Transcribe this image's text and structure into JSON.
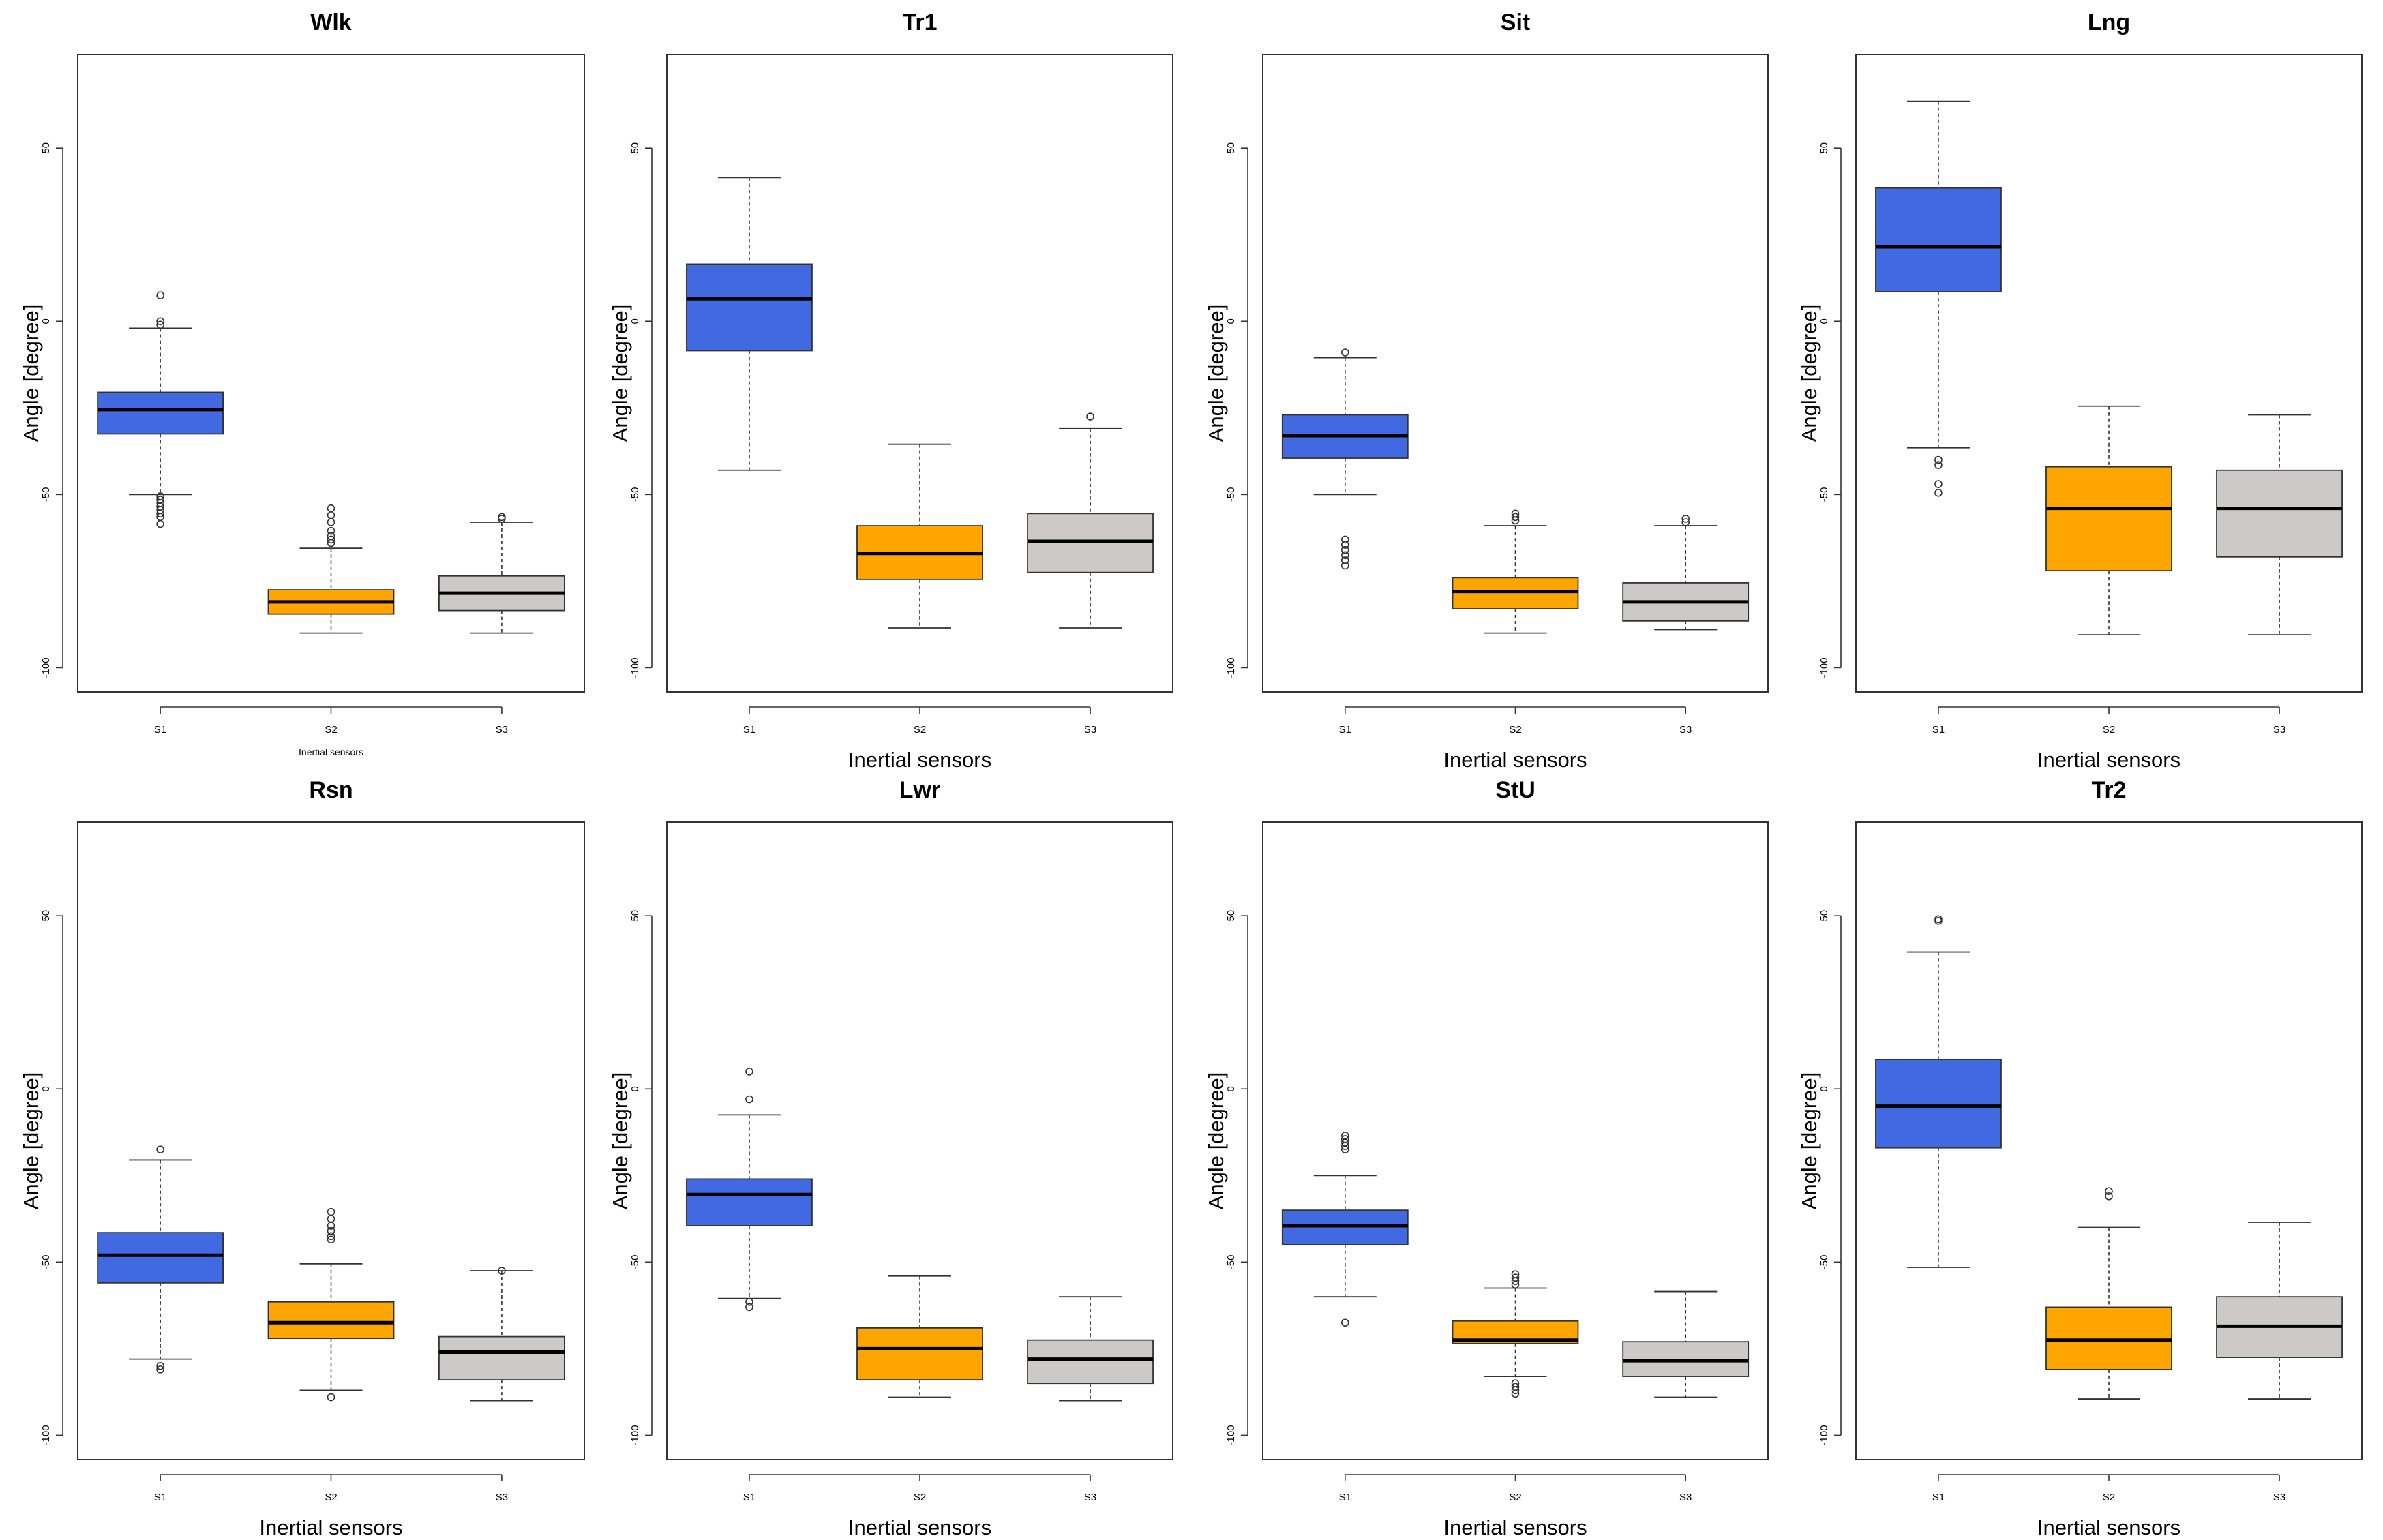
{
  "chart_data": [
    {
      "type": "box",
      "title": "Wlk",
      "ylabel": "Angle [degree]",
      "xlabel": "Inertial sensors",
      "xlabel_size": "small",
      "categories": [
        "S1",
        "S2",
        "S3"
      ],
      "ylim": [
        -107,
        77
      ],
      "yticks": [
        -100,
        -50,
        0,
        50
      ],
      "boxes": [
        {
          "name": "S1",
          "lower": -50,
          "q1": -32.5,
          "median": -25.5,
          "q3": -20.5,
          "upper": -2,
          "outliers": [
            7.5,
            0,
            -1,
            -50.5,
            -51.5,
            -52.5,
            -53.5,
            -54.5,
            -55.5,
            -56.5,
            -58.5
          ]
        },
        {
          "name": "S2",
          "lower": -90,
          "q1": -84.5,
          "median": -81,
          "q3": -77.5,
          "upper": -65.5,
          "outliers": [
            -54,
            -56,
            -58,
            -60.5,
            -62,
            -63,
            -64
          ]
        },
        {
          "name": "S3",
          "lower": -90,
          "q1": -83.5,
          "median": -78.5,
          "q3": -73.5,
          "upper": -58,
          "outliers": [
            -56.5,
            -57
          ]
        }
      ]
    },
    {
      "type": "box",
      "title": "Tr1",
      "ylabel": "Angle [degree]",
      "xlabel": "Inertial sensors",
      "categories": [
        "S1",
        "S2",
        "S3"
      ],
      "ylim": [
        -107,
        77
      ],
      "yticks": [
        -100,
        -50,
        0,
        50
      ],
      "boxes": [
        {
          "name": "S1",
          "lower": -43,
          "q1": -8.5,
          "median": 6.5,
          "q3": 16.5,
          "upper": 41.5,
          "outliers": []
        },
        {
          "name": "S2",
          "lower": -88.5,
          "q1": -74.5,
          "median": -67,
          "q3": -59,
          "upper": -35.5,
          "outliers": []
        },
        {
          "name": "S3",
          "lower": -88.5,
          "q1": -72.5,
          "median": -63.5,
          "q3": -55.5,
          "upper": -31,
          "outliers": [
            -27.5
          ]
        }
      ]
    },
    {
      "type": "box",
      "title": "Sit",
      "ylabel": "Angle [degree]",
      "xlabel": "Inertial sensors",
      "categories": [
        "S1",
        "S2",
        "S3"
      ],
      "ylim": [
        -107,
        77
      ],
      "yticks": [
        -100,
        -50,
        0,
        50
      ],
      "boxes": [
        {
          "name": "S1",
          "lower": -50,
          "q1": -39.5,
          "median": -33,
          "q3": -27,
          "upper": -10.5,
          "outliers": [
            -9,
            -63,
            -64.5,
            -66,
            -67.5,
            -69,
            -70.5
          ]
        },
        {
          "name": "S2",
          "lower": -90,
          "q1": -83,
          "median": -78,
          "q3": -74,
          "upper": -59,
          "outliers": [
            -55.5,
            -56.5,
            -57.5
          ]
        },
        {
          "name": "S3",
          "lower": -89,
          "q1": -86.5,
          "median": -81,
          "q3": -75.5,
          "upper": -59,
          "outliers": [
            -57,
            -58
          ]
        }
      ]
    },
    {
      "type": "box",
      "title": "Lng",
      "ylabel": "Angle [degree]",
      "xlabel": "Inertial sensors",
      "categories": [
        "S1",
        "S2",
        "S3"
      ],
      "ylim": [
        -107,
        77
      ],
      "yticks": [
        -100,
        -50,
        0,
        50
      ],
      "boxes": [
        {
          "name": "S1",
          "lower": -36.5,
          "q1": 8.5,
          "median": 21.5,
          "q3": 38.5,
          "upper": 63.5,
          "outliers": [
            -40,
            -41.5,
            -47,
            -49.5
          ]
        },
        {
          "name": "S2",
          "lower": -90.5,
          "q1": -72,
          "median": -54,
          "q3": -42,
          "upper": -24.5,
          "outliers": []
        },
        {
          "name": "S3",
          "lower": -90.5,
          "q1": -68,
          "median": -54,
          "q3": -43,
          "upper": -27,
          "outliers": []
        }
      ]
    },
    {
      "type": "box",
      "title": "Rsn",
      "ylabel": "Angle [degree]",
      "xlabel": "Inertial sensors",
      "categories": [
        "S1",
        "S2",
        "S3"
      ],
      "ylim": [
        -107,
        77
      ],
      "yticks": [
        -100,
        -50,
        0,
        50
      ],
      "boxes": [
        {
          "name": "S1",
          "lower": -78,
          "q1": -56,
          "median": -48,
          "q3": -41.5,
          "upper": -20.5,
          "outliers": [
            -17.5,
            -80,
            -81
          ]
        },
        {
          "name": "S2",
          "lower": -87,
          "q1": -72,
          "median": -67.5,
          "q3": -61.5,
          "upper": -50.5,
          "outliers": [
            -35.5,
            -37.5,
            -39.5,
            -41,
            -42.5,
            -43.5,
            -89
          ]
        },
        {
          "name": "S3",
          "lower": -90,
          "q1": -84,
          "median": -76,
          "q3": -71.5,
          "upper": -52.5,
          "outliers": [
            -52.5
          ]
        }
      ]
    },
    {
      "type": "box",
      "title": "Lwr",
      "ylabel": "Angle [degree]",
      "xlabel": "Inertial sensors",
      "categories": [
        "S1",
        "S2",
        "S3"
      ],
      "ylim": [
        -107,
        77
      ],
      "yticks": [
        -100,
        -50,
        0,
        50
      ],
      "boxes": [
        {
          "name": "S1",
          "lower": -60.5,
          "q1": -39.5,
          "median": -30.5,
          "q3": -26,
          "upper": -7.5,
          "outliers": [
            5,
            -3,
            -61.5,
            -63
          ]
        },
        {
          "name": "S2",
          "lower": -89,
          "q1": -84,
          "median": -75,
          "q3": -69,
          "upper": -54,
          "outliers": []
        },
        {
          "name": "S3",
          "lower": -90,
          "q1": -85,
          "median": -78,
          "q3": -72.5,
          "upper": -60,
          "outliers": []
        }
      ]
    },
    {
      "type": "box",
      "title": "StU",
      "ylabel": "Angle [degree]",
      "xlabel": "Inertial sensors",
      "categories": [
        "S1",
        "S2",
        "S3"
      ],
      "ylim": [
        -107,
        77
      ],
      "yticks": [
        -100,
        -50,
        0,
        50
      ],
      "boxes": [
        {
          "name": "S1",
          "lower": -60,
          "q1": -45,
          "median": -39.5,
          "q3": -35,
          "upper": -25,
          "outliers": [
            -13.5,
            -14.5,
            -15.5,
            -16.5,
            -17.5,
            -67.5
          ]
        },
        {
          "name": "S2",
          "lower": -83,
          "q1": -73.5,
          "median": -72.5,
          "q3": -67,
          "upper": -57.5,
          "outliers": [
            -53.5,
            -54.5,
            -55.5,
            -56.5,
            -85,
            -86,
            -87,
            -88
          ]
        },
        {
          "name": "S3",
          "lower": -89,
          "q1": -83,
          "median": -78.5,
          "q3": -73,
          "upper": -58.5,
          "outliers": []
        }
      ]
    },
    {
      "type": "box",
      "title": "Tr2",
      "ylabel": "Angle [degree]",
      "xlabel": "Inertial sensors",
      "categories": [
        "S1",
        "S2",
        "S3"
      ],
      "ylim": [
        -107,
        77
      ],
      "yticks": [
        -100,
        -50,
        0,
        50
      ],
      "boxes": [
        {
          "name": "S1",
          "lower": -51.5,
          "q1": -17,
          "median": -5,
          "q3": 8.5,
          "upper": 39.5,
          "outliers": [
            48.5,
            49
          ]
        },
        {
          "name": "S2",
          "lower": -89.5,
          "q1": -81,
          "median": -72.5,
          "q3": -63,
          "upper": -40,
          "outliers": [
            -29.5,
            -31
          ]
        },
        {
          "name": "S3",
          "lower": -89.5,
          "q1": -77.5,
          "median": -68.5,
          "q3": -60,
          "upper": -38.5,
          "outliers": []
        }
      ]
    }
  ],
  "colors": {
    "S1": "#4169e1",
    "S2": "#ffa500",
    "S3": "#cdc9c9",
    "axis": "#333333",
    "median": "#000000"
  }
}
